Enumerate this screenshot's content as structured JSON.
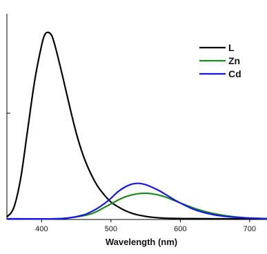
{
  "chart_data": {
    "type": "line",
    "xlabel": "Wavelength (nm)",
    "ylabel": "",
    "xlim": [
      350,
      725
    ],
    "ylim": [
      0,
      1.0
    ],
    "x_ticks": [
      400,
      500,
      600,
      700
    ],
    "grid": false,
    "legend_position": "top-right",
    "y_ticks_labeled": false,
    "series": [
      {
        "name": "L",
        "color": "#000000",
        "x": [
          350,
          360,
          370,
          380,
          390,
          400,
          405,
          410,
          415,
          420,
          430,
          440,
          450,
          460,
          470,
          480,
          490,
          500,
          510,
          520,
          530,
          540,
          550,
          560,
          570,
          580,
          600,
          620,
          650,
          700,
          725
        ],
        "y": [
          0.01,
          0.06,
          0.22,
          0.48,
          0.74,
          0.93,
          0.99,
          1.0,
          0.98,
          0.92,
          0.77,
          0.61,
          0.46,
          0.34,
          0.25,
          0.18,
          0.13,
          0.09,
          0.065,
          0.045,
          0.03,
          0.02,
          0.013,
          0.008,
          0.005,
          0.003,
          0.0015,
          0.0008,
          0.0003,
          0.0,
          0.0
        ]
      },
      {
        "name": "Zn",
        "color": "#1a8a1a",
        "x": [
          350,
          420,
          450,
          470,
          480,
          490,
          500,
          510,
          520,
          530,
          540,
          550,
          560,
          570,
          580,
          590,
          600,
          620,
          640,
          660,
          680,
          700,
          725
        ],
        "y": [
          0.0,
          0.0,
          0.01,
          0.025,
          0.04,
          0.06,
          0.08,
          0.1,
          0.117,
          0.128,
          0.135,
          0.137,
          0.134,
          0.126,
          0.115,
          0.1,
          0.085,
          0.057,
          0.035,
          0.02,
          0.01,
          0.004,
          0.001
        ]
      },
      {
        "name": "Cd",
        "color": "#1515ee",
        "x": [
          350,
          420,
          440,
          460,
          470,
          480,
          490,
          500,
          510,
          520,
          530,
          540,
          550,
          560,
          570,
          580,
          590,
          600,
          620,
          640,
          660,
          680,
          700,
          725
        ],
        "y": [
          0.0,
          0.0,
          0.005,
          0.02,
          0.035,
          0.055,
          0.08,
          0.11,
          0.145,
          0.17,
          0.186,
          0.19,
          0.183,
          0.168,
          0.15,
          0.128,
          0.105,
          0.085,
          0.05,
          0.028,
          0.015,
          0.008,
          0.004,
          0.001
        ]
      }
    ]
  }
}
